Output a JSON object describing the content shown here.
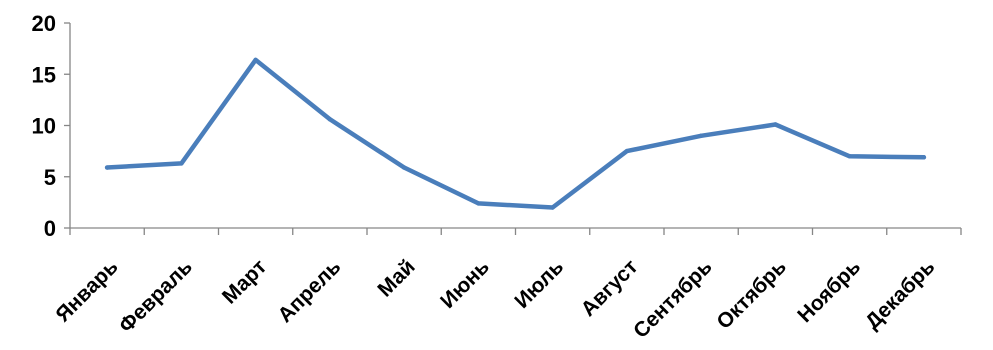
{
  "chart_data": {
    "type": "line",
    "title": "",
    "xlabel": "",
    "ylabel": "",
    "ylim": [
      0,
      20
    ],
    "yticks": [
      0,
      5,
      10,
      15,
      20
    ],
    "grid": false,
    "legend": "none",
    "categories": [
      "Январь",
      "Февраль",
      "Март",
      "Апрель",
      "Май",
      "Июнь",
      "Июль",
      "Август",
      "Сентябрь",
      "Октябрь",
      "Ноябрь",
      "Декабрь"
    ],
    "series": [
      {
        "values": [
          5.9,
          6.3,
          16.4,
          10.6,
          5.9,
          2.4,
          2.0,
          7.5,
          9.0,
          10.1,
          7.0,
          6.9
        ],
        "color": "#4a7ebb"
      }
    ]
  }
}
